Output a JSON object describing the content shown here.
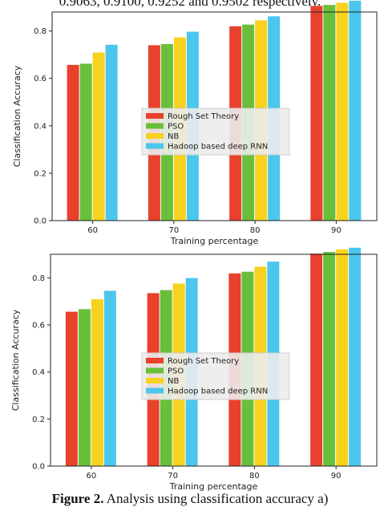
{
  "caption": {
    "top_fragment": "0.9063, 0.9100, 0.9252 and 0.9502 respectively.",
    "bottom_bold": "Figure 2.",
    "bottom_rest": " Analysis using classification accuracy a)"
  },
  "colors": {
    "Rough Set Theory": "#e8412c",
    "PSO": "#6abf3a",
    "NB": "#f7d21e",
    "Hadoop based deep RNN": "#4cc6ec"
  },
  "chart_data": [
    {
      "type": "bar",
      "title": "",
      "xlabel": "Training percentage",
      "ylabel": "Classification Accuracy",
      "categories": [
        "60",
        "70",
        "80",
        "90"
      ],
      "ylim": [
        0,
        0.88
      ],
      "yticks": [
        "0.0",
        "0.2",
        "0.4",
        "0.6",
        "0.8"
      ],
      "legend_position": "center",
      "grid": false,
      "series": [
        {
          "name": "Rough Set Theory",
          "values": [
            0.657,
            0.74,
            0.82,
            0.906
          ]
        },
        {
          "name": "PSO",
          "values": [
            0.662,
            0.745,
            0.827,
            0.91
          ]
        },
        {
          "name": "NB",
          "values": [
            0.709,
            0.773,
            0.845,
            0.919
          ]
        },
        {
          "name": "Hadoop based deep RNN",
          "values": [
            0.742,
            0.797,
            0.862,
            0.928
          ]
        }
      ]
    },
    {
      "type": "bar",
      "title": "",
      "xlabel": "Training percentage",
      "ylabel": "Classification Accuracy",
      "categories": [
        "60",
        "70",
        "80",
        "90"
      ],
      "ylim": [
        0,
        0.9
      ],
      "yticks": [
        "0.0",
        "0.2",
        "0.4",
        "0.6",
        "0.8"
      ],
      "legend_position": "center-bottom",
      "grid": false,
      "series": [
        {
          "name": "Rough Set Theory",
          "values": [
            0.656,
            0.735,
            0.819,
            0.903
          ]
        },
        {
          "name": "PSO",
          "values": [
            0.667,
            0.748,
            0.826,
            0.91
          ]
        },
        {
          "name": "NB",
          "values": [
            0.709,
            0.776,
            0.847,
            0.921
          ]
        },
        {
          "name": "Hadoop based deep RNN",
          "values": [
            0.745,
            0.799,
            0.869,
            0.928
          ]
        }
      ]
    }
  ]
}
